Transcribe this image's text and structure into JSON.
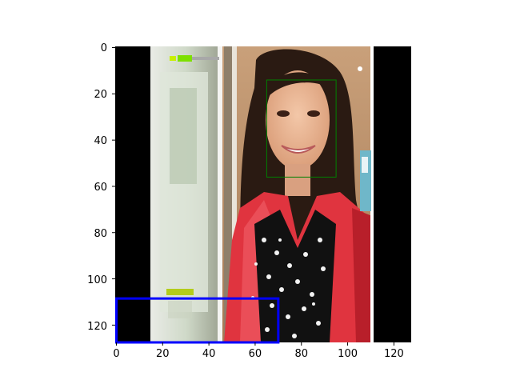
{
  "figure": {
    "image_description_icon": "portrait-photo",
    "axes": {
      "x_ticks": [
        "0",
        "20",
        "40",
        "60",
        "80",
        "100",
        "120"
      ],
      "y_ticks": [
        "0",
        "20",
        "40",
        "60",
        "80",
        "100",
        "120"
      ],
      "x_range": [
        0,
        128
      ],
      "y_range": [
        128,
        0
      ],
      "grid": false
    },
    "boxes": [
      {
        "label": "face-box",
        "color": "#008000",
        "x0": 65,
        "y0": 14,
        "x1": 95,
        "y1": 56
      },
      {
        "label": "region-box",
        "color": "#0000ff",
        "x0": 0,
        "y0": 108.5,
        "x1": 70,
        "y1": 128
      }
    ]
  }
}
